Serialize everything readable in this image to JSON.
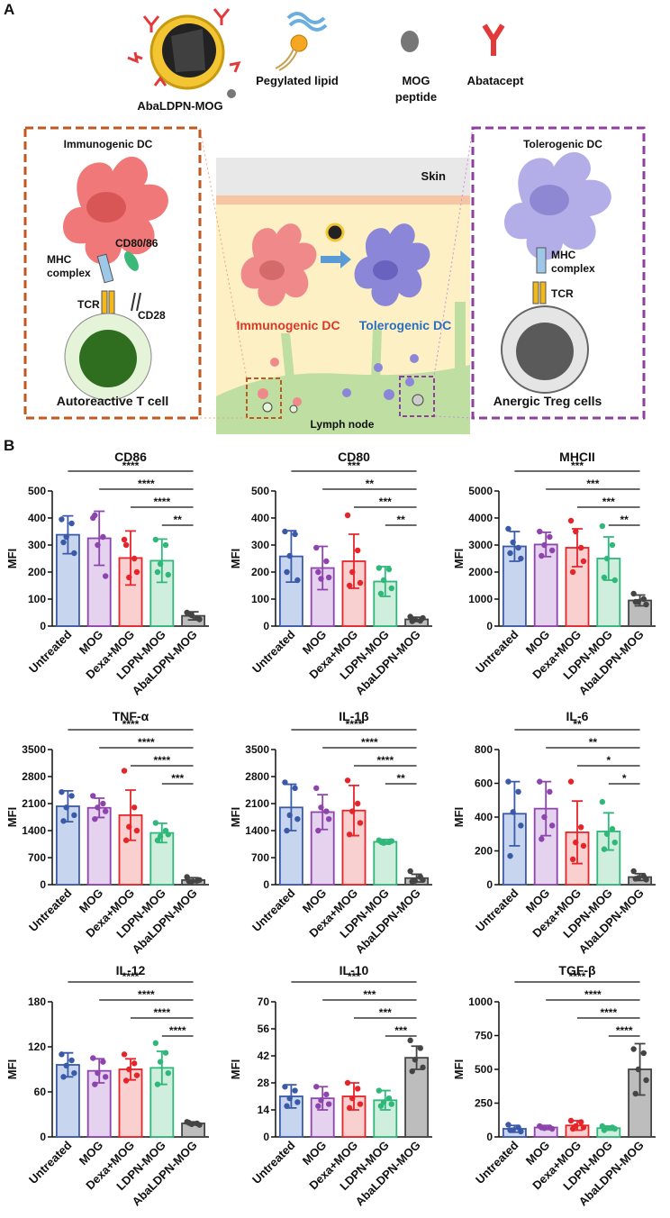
{
  "panel_a": {
    "letter": "A",
    "nanoparticle": "AbaLDPN-MOG",
    "lipid": "Pegylated lipid",
    "peptide": [
      "MOG",
      "peptide"
    ],
    "abatacept": "Abatacept",
    "left_title": "Immunogenic DC",
    "cd80": "CD80/86",
    "mhc_left": [
      "MHC",
      "complex"
    ],
    "tcr_left": "TCR",
    "cd28": "CD28",
    "left_cell": "Autoreactive T cell",
    "skin": "Skin",
    "mid_immuno": "Immunogenic DC",
    "mid_tolero": "Tolerogenic DC",
    "lymph": "Lymph node",
    "right_title": "Tolerogenic DC",
    "mhc_right": [
      "MHC",
      "complex"
    ],
    "tcr_right": "TCR",
    "right_cell": "Anergic Treg cells"
  },
  "panel_b_letter": "B",
  "chart_data": [
    {
      "type": "bar",
      "title": "CD86",
      "ylabel": "MFI",
      "categories": [
        "Untreated",
        "MOG",
        "Dexa+MOG",
        "LDPN-MOG",
        "AbaLDPN-MOG"
      ],
      "values": [
        338,
        325,
        252,
        242,
        38
      ],
      "errors": [
        70,
        100,
        100,
        80,
        15
      ],
      "points": [
        [
          395,
          380,
          330,
          270,
          310
        ],
        [
          400,
          330,
          300,
          185,
          410
        ],
        [
          320,
          250,
          180,
          200,
          300
        ],
        [
          320,
          300,
          230,
          190,
          200
        ],
        [
          50,
          30,
          40,
          25,
          45
        ]
      ],
      "colors": [
        "#3a5aa8",
        "#8e44ad",
        "#e5252a",
        "#2fb87a",
        "#444444"
      ],
      "fill_colors": [
        "#c8d5ef",
        "#e4d2ef",
        "#f9d0d0",
        "#cfeedd",
        "#bdbdbd"
      ],
      "ylim": [
        0,
        500
      ],
      "yticks": [
        0,
        100,
        200,
        300,
        400,
        500
      ],
      "significance": [
        {
          "groups": [
            "Untreated",
            "AbaLDPN-MOG"
          ],
          "label": "****"
        },
        {
          "groups": [
            "MOG",
            "AbaLDPN-MOG"
          ],
          "label": "****"
        },
        {
          "groups": [
            "Dexa+MOG",
            "AbaLDPN-MOG"
          ],
          "label": "****"
        },
        {
          "groups": [
            "LDPN-MOG",
            "AbaLDPN-MOG"
          ],
          "label": "**"
        }
      ]
    },
    {
      "type": "bar",
      "title": "CD80",
      "ylabel": "MFI",
      "categories": [
        "Untreated",
        "MOG",
        "Dexa+MOG",
        "LDPN-MOG",
        "AbaLDPN-MOG"
      ],
      "values": [
        258,
        215,
        240,
        165,
        25
      ],
      "errors": [
        95,
        80,
        100,
        55,
        8
      ],
      "points": [
        [
          350,
          340,
          260,
          170,
          200
        ],
        [
          290,
          240,
          175,
          180,
          200
        ],
        [
          410,
          280,
          200,
          160,
          150
        ],
        [
          215,
          210,
          170,
          140,
          120
        ],
        [
          35,
          20,
          25,
          30,
          18
        ]
      ],
      "colors": [
        "#3a5aa8",
        "#8e44ad",
        "#e5252a",
        "#2fb87a",
        "#444444"
      ],
      "fill_colors": [
        "#c8d5ef",
        "#e4d2ef",
        "#f9d0d0",
        "#cfeedd",
        "#bdbdbd"
      ],
      "ylim": [
        0,
        500
      ],
      "yticks": [
        0,
        100,
        200,
        300,
        400,
        500
      ],
      "significance": [
        {
          "groups": [
            "Untreated",
            "AbaLDPN-MOG"
          ],
          "label": "***"
        },
        {
          "groups": [
            "MOG",
            "AbaLDPN-MOG"
          ],
          "label": "**"
        },
        {
          "groups": [
            "Dexa+MOG",
            "AbaLDPN-MOG"
          ],
          "label": "***"
        },
        {
          "groups": [
            "LDPN-MOG",
            "AbaLDPN-MOG"
          ],
          "label": "**"
        }
      ]
    },
    {
      "type": "bar",
      "title": "MHCII",
      "ylabel": "MFI",
      "categories": [
        "Untreated",
        "MOG",
        "Dexa+MOG",
        "LDPN-MOG",
        "AbaLDPN-MOG"
      ],
      "values": [
        2950,
        3020,
        2900,
        2500,
        950
      ],
      "errors": [
        550,
        450,
        700,
        800,
        200
      ],
      "points": [
        [
          3600,
          2900,
          3100,
          2500,
          2700
        ],
        [
          3500,
          3300,
          3000,
          2800,
          2600
        ],
        [
          3900,
          2900,
          3500,
          2400,
          2000
        ],
        [
          3700,
          3000,
          2500,
          1700,
          1800
        ],
        [
          1200,
          1000,
          900,
          800,
          900
        ]
      ],
      "colors": [
        "#3a5aa8",
        "#8e44ad",
        "#e5252a",
        "#2fb87a",
        "#444444"
      ],
      "fill_colors": [
        "#c8d5ef",
        "#e4d2ef",
        "#f9d0d0",
        "#cfeedd",
        "#bdbdbd"
      ],
      "ylim": [
        0,
        5000
      ],
      "yticks": [
        0,
        1000,
        2000,
        3000,
        4000,
        5000
      ],
      "significance": [
        {
          "groups": [
            "Untreated",
            "AbaLDPN-MOG"
          ],
          "label": "***"
        },
        {
          "groups": [
            "MOG",
            "AbaLDPN-MOG"
          ],
          "label": "***"
        },
        {
          "groups": [
            "Dexa+MOG",
            "AbaLDPN-MOG"
          ],
          "label": "***"
        },
        {
          "groups": [
            "LDPN-MOG",
            "AbaLDPN-MOG"
          ],
          "label": "**"
        }
      ]
    },
    {
      "type": "bar",
      "title": "TNF-α",
      "ylabel": "MFI",
      "categories": [
        "Untreated",
        "MOG",
        "Dexa+MOG",
        "LDPN-MOG",
        "AbaLDPN-MOG"
      ],
      "values": [
        2030,
        1990,
        1800,
        1340,
        120
      ],
      "errors": [
        400,
        250,
        650,
        250,
        60
      ],
      "points": [
        [
          2400,
          2300,
          2000,
          1800,
          1650
        ],
        [
          2300,
          2100,
          2000,
          1900,
          1700
        ],
        [
          2950,
          2000,
          1500,
          1400,
          1150
        ],
        [
          1600,
          1400,
          1250,
          1300,
          1150
        ],
        [
          200,
          100,
          80,
          120,
          90
        ]
      ],
      "colors": [
        "#3a5aa8",
        "#8e44ad",
        "#e5252a",
        "#2fb87a",
        "#444444"
      ],
      "fill_colors": [
        "#c8d5ef",
        "#e4d2ef",
        "#f9d0d0",
        "#cfeedd",
        "#bdbdbd"
      ],
      "ylim": [
        0,
        3500
      ],
      "yticks": [
        0,
        700,
        1400,
        2100,
        2800,
        3500
      ],
      "significance": [
        {
          "groups": [
            "Untreated",
            "AbaLDPN-MOG"
          ],
          "label": "****"
        },
        {
          "groups": [
            "MOG",
            "AbaLDPN-MOG"
          ],
          "label": "****"
        },
        {
          "groups": [
            "Dexa+MOG",
            "AbaLDPN-MOG"
          ],
          "label": "****"
        },
        {
          "groups": [
            "LDPN-MOG",
            "AbaLDPN-MOG"
          ],
          "label": "***"
        }
      ]
    },
    {
      "type": "bar",
      "title": "IL-1β",
      "ylabel": "MFI",
      "categories": [
        "Untreated",
        "MOG",
        "Dexa+MOG",
        "LDPN-MOG",
        "AbaLDPN-MOG"
      ],
      "values": [
        2000,
        1880,
        1920,
        1110,
        170
      ],
      "errors": [
        600,
        450,
        650,
        60,
        100
      ],
      "points": [
        [
          2650,
          2500,
          1800,
          1700,
          1400
        ],
        [
          2500,
          1900,
          2000,
          1700,
          1400
        ],
        [
          2700,
          2100,
          1900,
          1600,
          1300
        ],
        [
          1150,
          1100,
          1080,
          1130,
          1120
        ],
        [
          350,
          200,
          100,
          120,
          80
        ]
      ],
      "colors": [
        "#3a5aa8",
        "#8e44ad",
        "#e5252a",
        "#2fb87a",
        "#444444"
      ],
      "fill_colors": [
        "#c8d5ef",
        "#e4d2ef",
        "#f9d0d0",
        "#cfeedd",
        "#bdbdbd"
      ],
      "ylim": [
        0,
        3500
      ],
      "yticks": [
        0,
        700,
        1400,
        2100,
        2800,
        3500
      ],
      "significance": [
        {
          "groups": [
            "Untreated",
            "AbaLDPN-MOG"
          ],
          "label": "****"
        },
        {
          "groups": [
            "MOG",
            "AbaLDPN-MOG"
          ],
          "label": "****"
        },
        {
          "groups": [
            "Dexa+MOG",
            "AbaLDPN-MOG"
          ],
          "label": "****"
        },
        {
          "groups": [
            "LDPN-MOG",
            "AbaLDPN-MOG"
          ],
          "label": "**"
        }
      ]
    },
    {
      "type": "bar",
      "title": "IL-6",
      "ylabel": "MFI",
      "categories": [
        "Untreated",
        "MOG",
        "Dexa+MOG",
        "LDPN-MOG",
        "AbaLDPN-MOG"
      ],
      "values": [
        420,
        450,
        310,
        315,
        45
      ],
      "errors": [
        190,
        160,
        185,
        110,
        20
      ],
      "points": [
        [
          610,
          550,
          430,
          350,
          170
        ],
        [
          610,
          550,
          400,
          350,
          270
        ],
        [
          610,
          340,
          250,
          230,
          150
        ],
        [
          490,
          330,
          300,
          250,
          210
        ],
        [
          80,
          50,
          40,
          30,
          35
        ]
      ],
      "colors": [
        "#3a5aa8",
        "#8e44ad",
        "#e5252a",
        "#2fb87a",
        "#444444"
      ],
      "fill_colors": [
        "#c8d5ef",
        "#e4d2ef",
        "#f9d0d0",
        "#cfeedd",
        "#bdbdbd"
      ],
      "ylim": [
        0,
        800
      ],
      "yticks": [
        0,
        200,
        400,
        600,
        800
      ],
      "significance": [
        {
          "groups": [
            "Untreated",
            "AbaLDPN-MOG"
          ],
          "label": "**"
        },
        {
          "groups": [
            "MOG",
            "AbaLDPN-MOG"
          ],
          "label": "**"
        },
        {
          "groups": [
            "Dexa+MOG",
            "AbaLDPN-MOG"
          ],
          "label": "*"
        },
        {
          "groups": [
            "LDPN-MOG",
            "AbaLDPN-MOG"
          ],
          "label": "*"
        }
      ]
    },
    {
      "type": "bar",
      "title": "IL-12",
      "ylabel": "MFI",
      "categories": [
        "Untreated",
        "MOG",
        "Dexa+MOG",
        "LDPN-MOG",
        "AbaLDPN-MOG"
      ],
      "values": [
        96,
        88,
        90,
        92,
        18
      ],
      "errors": [
        16,
        16,
        14,
        22,
        2
      ],
      "points": [
        [
          110,
          102,
          95,
          85,
          80
        ],
        [
          105,
          100,
          85,
          80,
          70
        ],
        [
          110,
          98,
          90,
          82,
          75
        ],
        [
          125,
          112,
          100,
          85,
          70
        ],
        [
          20,
          18,
          17,
          16,
          19
        ]
      ],
      "colors": [
        "#3a5aa8",
        "#8e44ad",
        "#e5252a",
        "#2fb87a",
        "#444444"
      ],
      "fill_colors": [
        "#c8d5ef",
        "#e4d2ef",
        "#f9d0d0",
        "#cfeedd",
        "#bdbdbd"
      ],
      "ylim": [
        0,
        180
      ],
      "yticks": [
        0,
        60,
        120,
        180
      ],
      "significance": [
        {
          "groups": [
            "Untreated",
            "AbaLDPN-MOG"
          ],
          "label": "****"
        },
        {
          "groups": [
            "MOG",
            "AbaLDPN-MOG"
          ],
          "label": "****"
        },
        {
          "groups": [
            "Dexa+MOG",
            "AbaLDPN-MOG"
          ],
          "label": "****"
        },
        {
          "groups": [
            "LDPN-MOG",
            "AbaLDPN-MOG"
          ],
          "label": "****"
        }
      ]
    },
    {
      "type": "bar",
      "title": "IL-10",
      "ylabel": "MFI",
      "categories": [
        "Untreated",
        "MOG",
        "Dexa+MOG",
        "LDPN-MOG",
        "AbaLDPN-MOG"
      ],
      "values": [
        21,
        20,
        21,
        19,
        41
      ],
      "errors": [
        6,
        6,
        7,
        5,
        6
      ],
      "points": [
        [
          26,
          24,
          20,
          18,
          16
        ],
        [
          26,
          22,
          19,
          17,
          16
        ],
        [
          28,
          25,
          20,
          17,
          15
        ],
        [
          24,
          20,
          18,
          17,
          16
        ],
        [
          50,
          46,
          40,
          36,
          34
        ]
      ],
      "colors": [
        "#3a5aa8",
        "#8e44ad",
        "#e5252a",
        "#2fb87a",
        "#444444"
      ],
      "fill_colors": [
        "#c8d5ef",
        "#e4d2ef",
        "#f9d0d0",
        "#cfeedd",
        "#bdbdbd"
      ],
      "ylim": [
        0,
        70
      ],
      "yticks": [
        0,
        14,
        28,
        42,
        56,
        70
      ],
      "significance": [
        {
          "groups": [
            "Untreated",
            "AbaLDPN-MOG"
          ],
          "label": "***"
        },
        {
          "groups": [
            "MOG",
            "AbaLDPN-MOG"
          ],
          "label": "***"
        },
        {
          "groups": [
            "Dexa+MOG",
            "AbaLDPN-MOG"
          ],
          "label": "***"
        },
        {
          "groups": [
            "LDPN-MOG",
            "AbaLDPN-MOG"
          ],
          "label": "***"
        }
      ]
    },
    {
      "type": "bar",
      "title": "TGF-β",
      "ylabel": "MFI",
      "categories": [
        "Untreated",
        "MOG",
        "Dexa+MOG",
        "LDPN-MOG",
        "AbaLDPN-MOG"
      ],
      "values": [
        60,
        70,
        85,
        65,
        500
      ],
      "errors": [
        25,
        15,
        35,
        15,
        190
      ],
      "points": [
        [
          90,
          70,
          50,
          40,
          50
        ],
        [
          80,
          70,
          65,
          60,
          70
        ],
        [
          120,
          110,
          80,
          70,
          60
        ],
        [
          80,
          70,
          65,
          60,
          50
        ],
        [
          650,
          620,
          500,
          420,
          320
        ]
      ],
      "colors": [
        "#3a5aa8",
        "#8e44ad",
        "#e5252a",
        "#2fb87a",
        "#444444"
      ],
      "fill_colors": [
        "#c8d5ef",
        "#e4d2ef",
        "#f9d0d0",
        "#cfeedd",
        "#bdbdbd"
      ],
      "ylim": [
        0,
        1000
      ],
      "yticks": [
        0,
        250,
        500,
        750,
        1000
      ],
      "significance": [
        {
          "groups": [
            "Untreated",
            "AbaLDPN-MOG"
          ],
          "label": "****"
        },
        {
          "groups": [
            "MOG",
            "AbaLDPN-MOG"
          ],
          "label": "****"
        },
        {
          "groups": [
            "Dexa+MOG",
            "AbaLDPN-MOG"
          ],
          "label": "****"
        },
        {
          "groups": [
            "LDPN-MOG",
            "AbaLDPN-MOG"
          ],
          "label": "****"
        }
      ]
    }
  ]
}
